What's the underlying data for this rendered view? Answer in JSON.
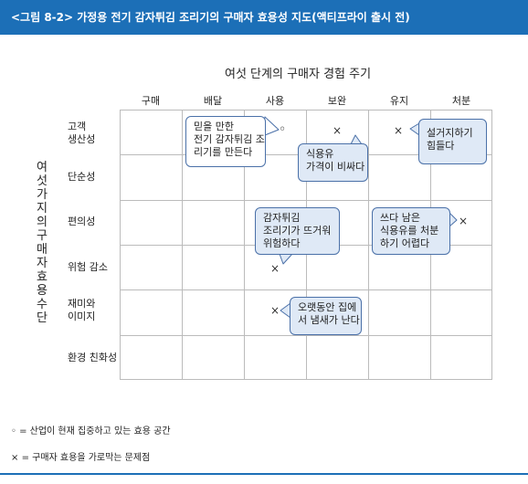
{
  "header": {
    "text": "<그림 8-2> 가정용 전기 감자튀김 조리기의 구매자 효용성 지도(액티프라이 출시 전)"
  },
  "title": "여섯 단계의 구매자 경험 주기",
  "columns": [
    "구매",
    "배달",
    "사용",
    "보완",
    "유지",
    "처분"
  ],
  "vertical_label": "여섯 가지의 구매자 효용 수단",
  "rows": [
    {
      "line1": "고객",
      "line2": "생산성"
    },
    {
      "line1": "단순성",
      "line2": ""
    },
    {
      "line1": "편의성",
      "line2": ""
    },
    {
      "line1": "위험 감소",
      "line2": ""
    },
    {
      "line1": "재미와",
      "line2": "이미지"
    },
    {
      "line1": "환경 친화성",
      "line2": ""
    }
  ],
  "bubbles": {
    "b1": {
      "line1": "믿을 만한",
      "line2": "전기 감자튀김 조",
      "line3": "리기를 만든다"
    },
    "b2": {
      "line1": "식용유",
      "line2": "가격이 비싸다"
    },
    "b3": {
      "line1": "설거지하기",
      "line2": "힘들다"
    },
    "b4": {
      "line1": "감자튀김",
      "line2": "조리기가 뜨거워",
      "line3": "위험하다"
    },
    "b5": {
      "line1": "쓰다 남은",
      "line2": "식용유를 처분",
      "line3": "하기 어렵다"
    },
    "b6": {
      "line1": "오랫동안 집에",
      "line2": "서 냄새가 난다"
    }
  },
  "marks": {
    "circle": "◦",
    "cross": "×"
  },
  "legend": [
    {
      "symbol": "◦",
      "text": "= 산업이 현재 집중하고 있는 효용 공간"
    },
    {
      "symbol": "×",
      "text": "= 구매자 효용을 가로막는 문제점"
    }
  ],
  "colors": {
    "header": "#1c6fb7",
    "bubble_fill": "#dfe9f6",
    "bubble_border": "#4a70a8"
  }
}
